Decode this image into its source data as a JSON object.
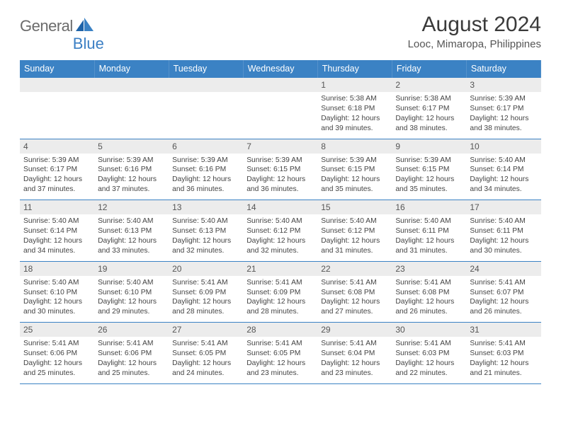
{
  "logo": {
    "text_general": "General",
    "text_blue": "Blue"
  },
  "header": {
    "month_title": "August 2024",
    "location": "Looc, Mimaropa, Philippines"
  },
  "colors": {
    "header_bg": "#3b82c4",
    "header_text": "#ffffff",
    "day_number_bg": "#ececec",
    "border": "#3b82c4",
    "logo_gray": "#6b6b6b",
    "logo_blue": "#3b7fc4"
  },
  "day_names": [
    "Sunday",
    "Monday",
    "Tuesday",
    "Wednesday",
    "Thursday",
    "Friday",
    "Saturday"
  ],
  "weeks": [
    [
      {
        "empty": true
      },
      {
        "empty": true
      },
      {
        "empty": true
      },
      {
        "empty": true
      },
      {
        "n": "1",
        "sunrise": "Sunrise: 5:38 AM",
        "sunset": "Sunset: 6:18 PM",
        "daylight": "Daylight: 12 hours and 39 minutes."
      },
      {
        "n": "2",
        "sunrise": "Sunrise: 5:38 AM",
        "sunset": "Sunset: 6:17 PM",
        "daylight": "Daylight: 12 hours and 38 minutes."
      },
      {
        "n": "3",
        "sunrise": "Sunrise: 5:39 AM",
        "sunset": "Sunset: 6:17 PM",
        "daylight": "Daylight: 12 hours and 38 minutes."
      }
    ],
    [
      {
        "n": "4",
        "sunrise": "Sunrise: 5:39 AM",
        "sunset": "Sunset: 6:17 PM",
        "daylight": "Daylight: 12 hours and 37 minutes."
      },
      {
        "n": "5",
        "sunrise": "Sunrise: 5:39 AM",
        "sunset": "Sunset: 6:16 PM",
        "daylight": "Daylight: 12 hours and 37 minutes."
      },
      {
        "n": "6",
        "sunrise": "Sunrise: 5:39 AM",
        "sunset": "Sunset: 6:16 PM",
        "daylight": "Daylight: 12 hours and 36 minutes."
      },
      {
        "n": "7",
        "sunrise": "Sunrise: 5:39 AM",
        "sunset": "Sunset: 6:15 PM",
        "daylight": "Daylight: 12 hours and 36 minutes."
      },
      {
        "n": "8",
        "sunrise": "Sunrise: 5:39 AM",
        "sunset": "Sunset: 6:15 PM",
        "daylight": "Daylight: 12 hours and 35 minutes."
      },
      {
        "n": "9",
        "sunrise": "Sunrise: 5:39 AM",
        "sunset": "Sunset: 6:15 PM",
        "daylight": "Daylight: 12 hours and 35 minutes."
      },
      {
        "n": "10",
        "sunrise": "Sunrise: 5:40 AM",
        "sunset": "Sunset: 6:14 PM",
        "daylight": "Daylight: 12 hours and 34 minutes."
      }
    ],
    [
      {
        "n": "11",
        "sunrise": "Sunrise: 5:40 AM",
        "sunset": "Sunset: 6:14 PM",
        "daylight": "Daylight: 12 hours and 34 minutes."
      },
      {
        "n": "12",
        "sunrise": "Sunrise: 5:40 AM",
        "sunset": "Sunset: 6:13 PM",
        "daylight": "Daylight: 12 hours and 33 minutes."
      },
      {
        "n": "13",
        "sunrise": "Sunrise: 5:40 AM",
        "sunset": "Sunset: 6:13 PM",
        "daylight": "Daylight: 12 hours and 32 minutes."
      },
      {
        "n": "14",
        "sunrise": "Sunrise: 5:40 AM",
        "sunset": "Sunset: 6:12 PM",
        "daylight": "Daylight: 12 hours and 32 minutes."
      },
      {
        "n": "15",
        "sunrise": "Sunrise: 5:40 AM",
        "sunset": "Sunset: 6:12 PM",
        "daylight": "Daylight: 12 hours and 31 minutes."
      },
      {
        "n": "16",
        "sunrise": "Sunrise: 5:40 AM",
        "sunset": "Sunset: 6:11 PM",
        "daylight": "Daylight: 12 hours and 31 minutes."
      },
      {
        "n": "17",
        "sunrise": "Sunrise: 5:40 AM",
        "sunset": "Sunset: 6:11 PM",
        "daylight": "Daylight: 12 hours and 30 minutes."
      }
    ],
    [
      {
        "n": "18",
        "sunrise": "Sunrise: 5:40 AM",
        "sunset": "Sunset: 6:10 PM",
        "daylight": "Daylight: 12 hours and 30 minutes."
      },
      {
        "n": "19",
        "sunrise": "Sunrise: 5:40 AM",
        "sunset": "Sunset: 6:10 PM",
        "daylight": "Daylight: 12 hours and 29 minutes."
      },
      {
        "n": "20",
        "sunrise": "Sunrise: 5:41 AM",
        "sunset": "Sunset: 6:09 PM",
        "daylight": "Daylight: 12 hours and 28 minutes."
      },
      {
        "n": "21",
        "sunrise": "Sunrise: 5:41 AM",
        "sunset": "Sunset: 6:09 PM",
        "daylight": "Daylight: 12 hours and 28 minutes."
      },
      {
        "n": "22",
        "sunrise": "Sunrise: 5:41 AM",
        "sunset": "Sunset: 6:08 PM",
        "daylight": "Daylight: 12 hours and 27 minutes."
      },
      {
        "n": "23",
        "sunrise": "Sunrise: 5:41 AM",
        "sunset": "Sunset: 6:08 PM",
        "daylight": "Daylight: 12 hours and 26 minutes."
      },
      {
        "n": "24",
        "sunrise": "Sunrise: 5:41 AM",
        "sunset": "Sunset: 6:07 PM",
        "daylight": "Daylight: 12 hours and 26 minutes."
      }
    ],
    [
      {
        "n": "25",
        "sunrise": "Sunrise: 5:41 AM",
        "sunset": "Sunset: 6:06 PM",
        "daylight": "Daylight: 12 hours and 25 minutes."
      },
      {
        "n": "26",
        "sunrise": "Sunrise: 5:41 AM",
        "sunset": "Sunset: 6:06 PM",
        "daylight": "Daylight: 12 hours and 25 minutes."
      },
      {
        "n": "27",
        "sunrise": "Sunrise: 5:41 AM",
        "sunset": "Sunset: 6:05 PM",
        "daylight": "Daylight: 12 hours and 24 minutes."
      },
      {
        "n": "28",
        "sunrise": "Sunrise: 5:41 AM",
        "sunset": "Sunset: 6:05 PM",
        "daylight": "Daylight: 12 hours and 23 minutes."
      },
      {
        "n": "29",
        "sunrise": "Sunrise: 5:41 AM",
        "sunset": "Sunset: 6:04 PM",
        "daylight": "Daylight: 12 hours and 23 minutes."
      },
      {
        "n": "30",
        "sunrise": "Sunrise: 5:41 AM",
        "sunset": "Sunset: 6:03 PM",
        "daylight": "Daylight: 12 hours and 22 minutes."
      },
      {
        "n": "31",
        "sunrise": "Sunrise: 5:41 AM",
        "sunset": "Sunset: 6:03 PM",
        "daylight": "Daylight: 12 hours and 21 minutes."
      }
    ]
  ]
}
